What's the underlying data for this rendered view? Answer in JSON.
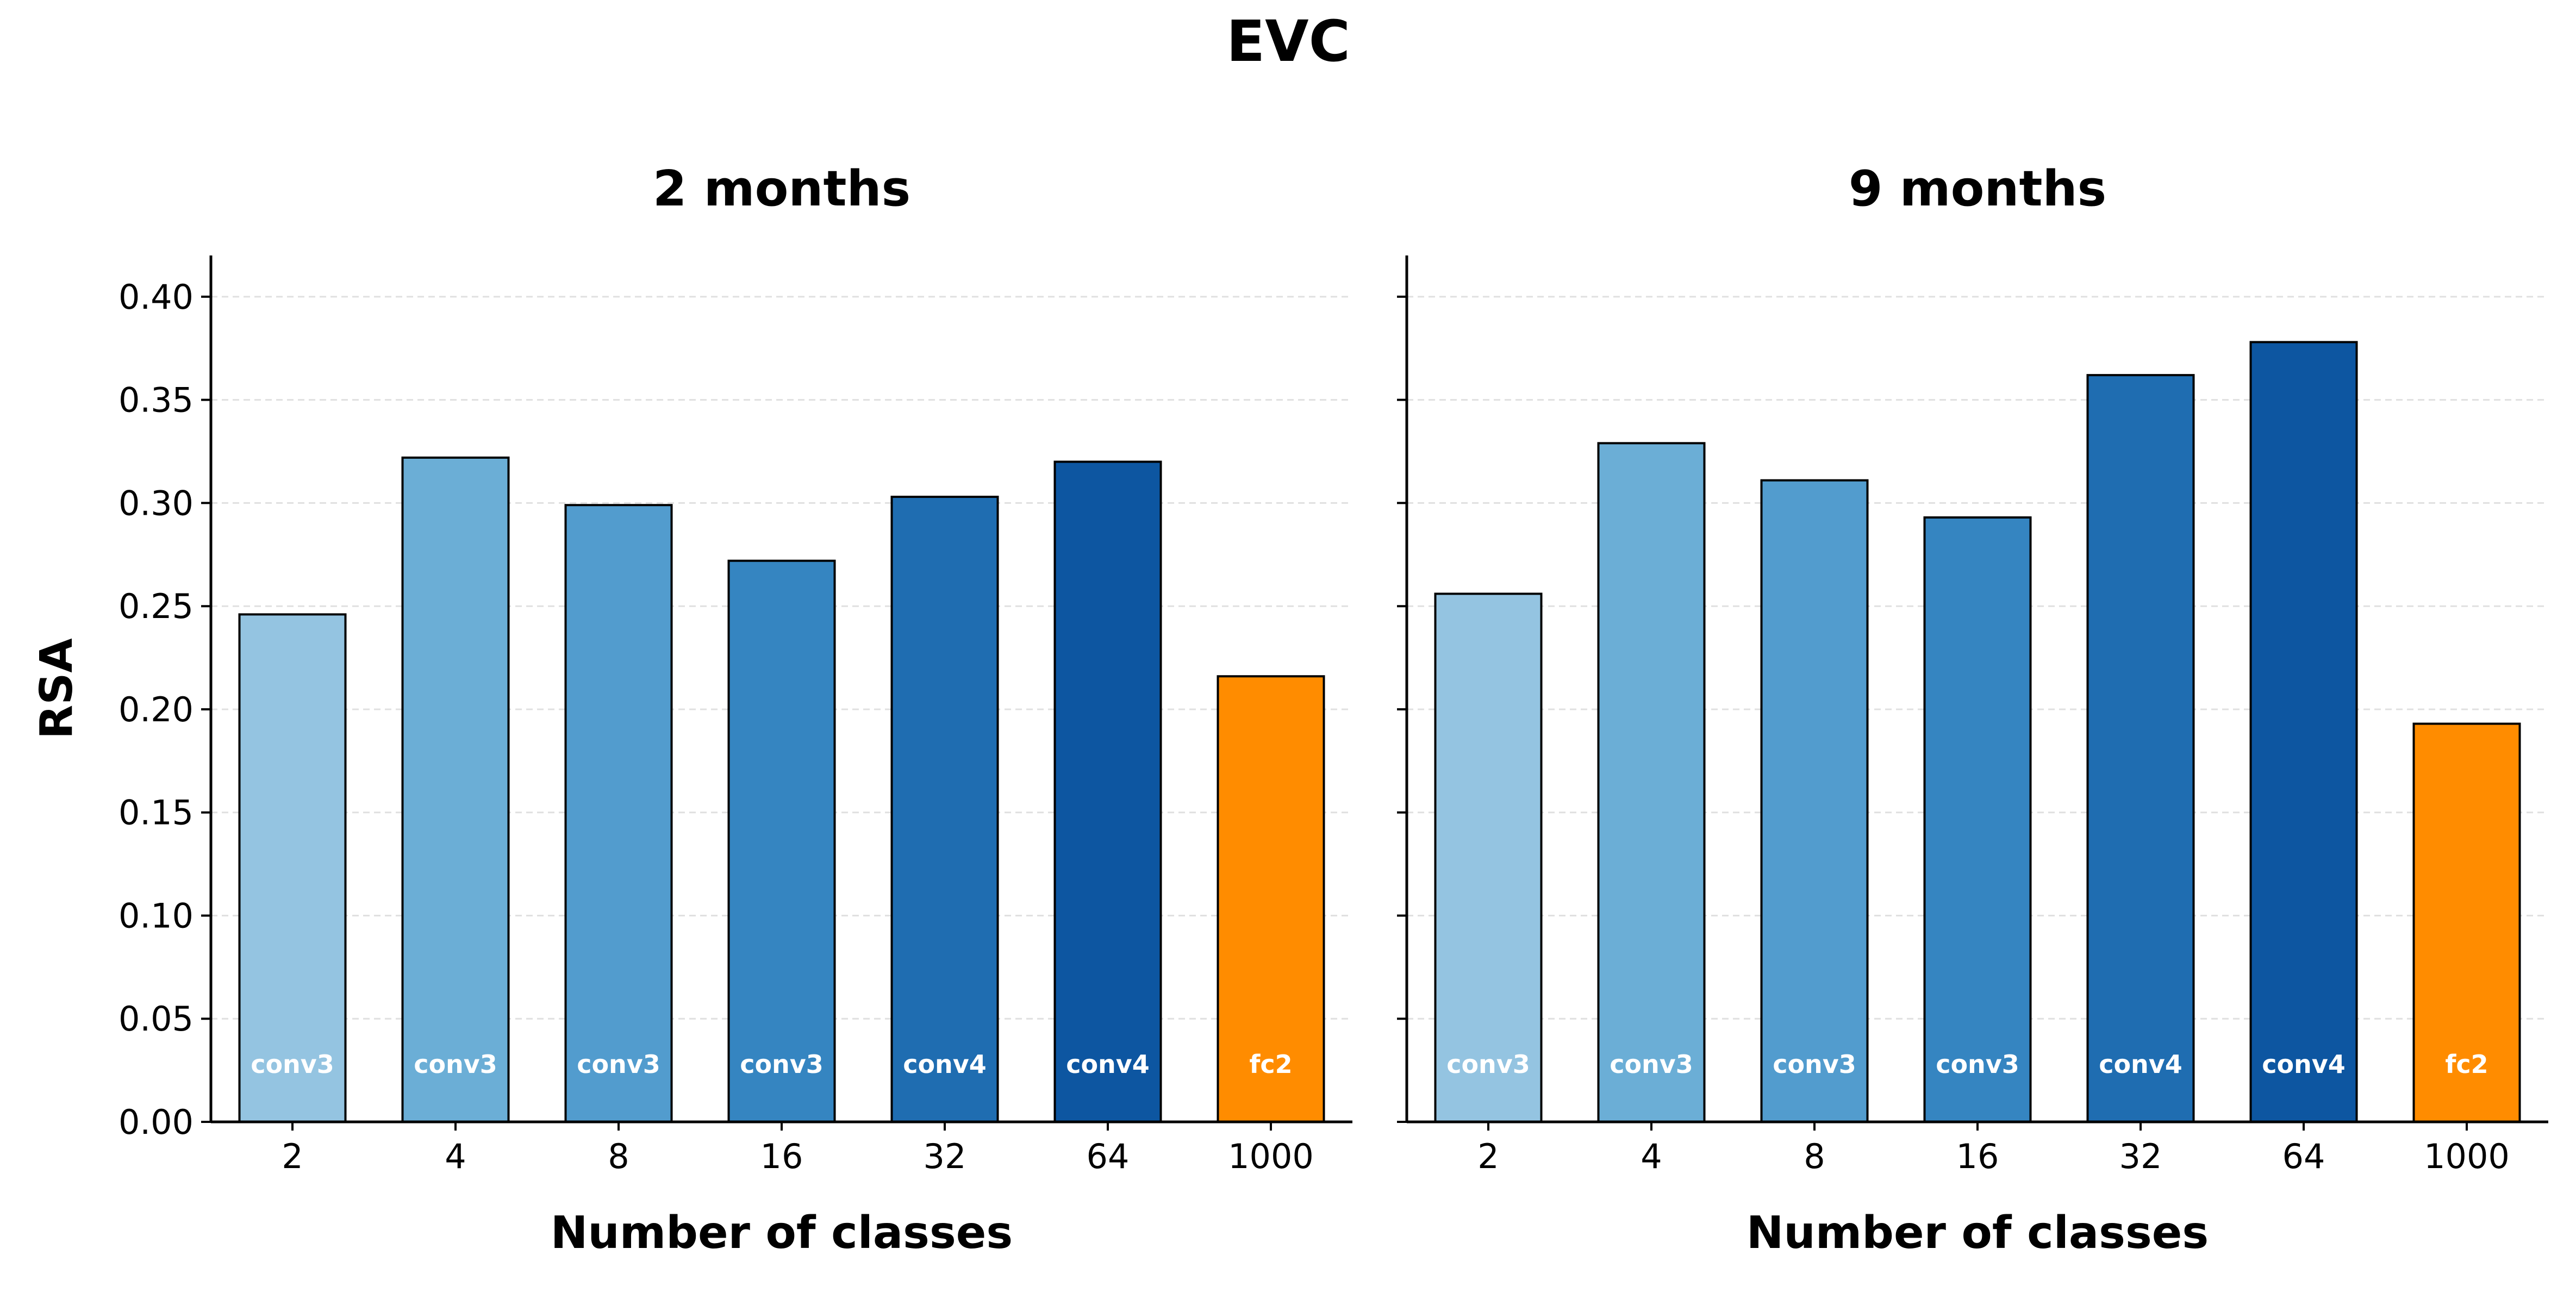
{
  "figure": {
    "title": "EVC"
  },
  "chart_data": [
    {
      "type": "bar",
      "title": "2 months",
      "xlabel": "Number of classes",
      "ylabel": "RSA",
      "categories": [
        "2",
        "4",
        "8",
        "16",
        "32",
        "64",
        "1000"
      ],
      "values": [
        0.246,
        0.322,
        0.299,
        0.272,
        0.303,
        0.32,
        0.216
      ],
      "bar_labels": [
        "conv3",
        "conv3",
        "conv3",
        "conv3",
        "conv4",
        "conv4",
        "fc2"
      ],
      "colors": [
        "#94c4e1",
        "#6baed6",
        "#529cce",
        "#3585c1",
        "#1f6db1",
        "#0d56a1",
        "#ff8c00"
      ],
      "ylim": [
        0,
        0.42
      ],
      "yticks": [
        "0.00",
        "0.05",
        "0.10",
        "0.15",
        "0.20",
        "0.25",
        "0.30",
        "0.35",
        "0.40"
      ],
      "grid": "y-dashed"
    },
    {
      "type": "bar",
      "title": "9 months",
      "xlabel": "Number of classes",
      "ylabel": "",
      "categories": [
        "2",
        "4",
        "8",
        "16",
        "32",
        "64",
        "1000"
      ],
      "values": [
        0.256,
        0.329,
        0.311,
        0.293,
        0.362,
        0.378,
        0.193
      ],
      "bar_labels": [
        "conv3",
        "conv3",
        "conv3",
        "conv3",
        "conv4",
        "conv4",
        "fc2"
      ],
      "colors": [
        "#94c4e1",
        "#6baed6",
        "#529cce",
        "#3585c1",
        "#1f6db1",
        "#0d56a1",
        "#ff8c00"
      ],
      "ylim": [
        0,
        0.42
      ],
      "yticks": [
        "0.00",
        "0.05",
        "0.10",
        "0.15",
        "0.20",
        "0.25",
        "0.30",
        "0.35",
        "0.40"
      ],
      "grid": "y-dashed"
    }
  ]
}
